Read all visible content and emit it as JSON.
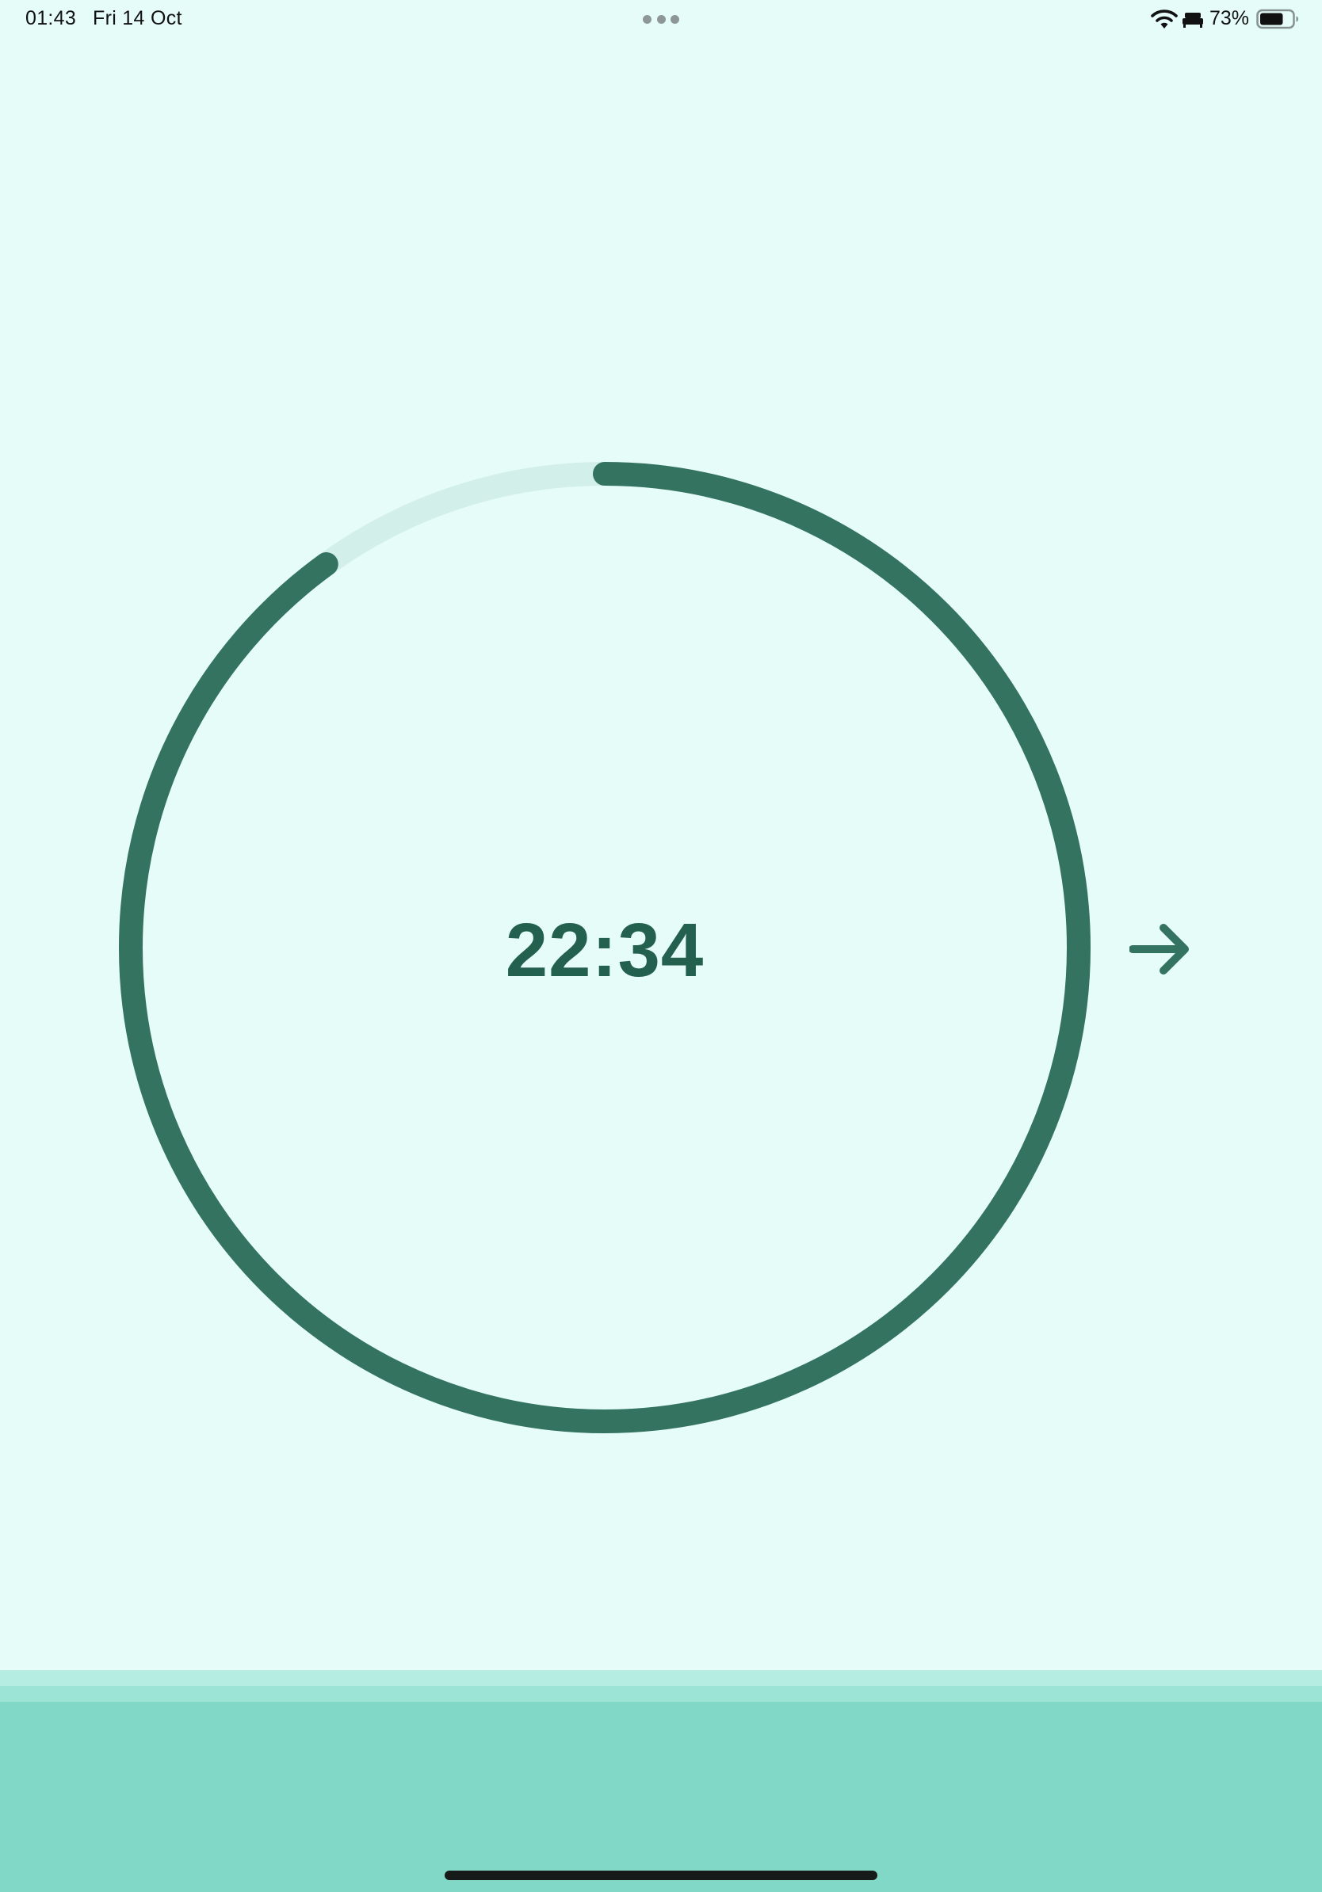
{
  "status_bar": {
    "time": "01:43",
    "date": "Fri 14 Oct",
    "battery_percent": "73%",
    "battery_level": 0.73,
    "icons": [
      "multitasking-dots-icon",
      "wifi-icon",
      "bed-icon",
      "battery-icon"
    ]
  },
  "timer": {
    "value": "22:34",
    "progress_fraction": 0.9,
    "ring_color": "#33735f",
    "track_color": "#d3efea",
    "text_color": "#24604e"
  },
  "next_button": {
    "icon": "arrow-right-icon"
  },
  "theme": {
    "background": "#e6fcf8",
    "panel_color": "#81d8c6"
  }
}
